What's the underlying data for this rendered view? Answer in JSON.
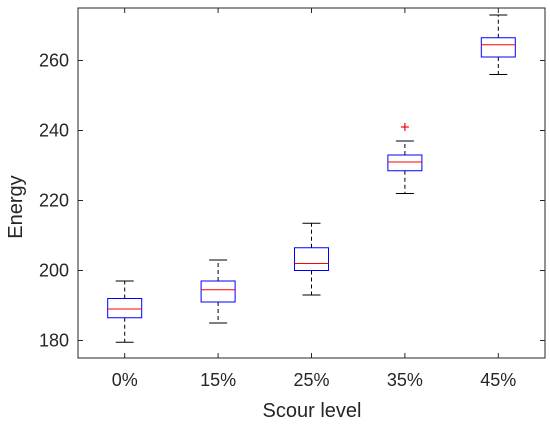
{
  "chart_data": {
    "type": "boxplot",
    "xlabel": "Scour level",
    "ylabel": "Energy",
    "categories": [
      "0%",
      "15%",
      "25%",
      "35%",
      "45%"
    ],
    "ylim": [
      175,
      275
    ],
    "yticks": [
      180,
      200,
      220,
      240,
      260
    ],
    "grid": false,
    "boxes": [
      {
        "category": "0%",
        "whisker_low": 179.5,
        "q1": 186.5,
        "median": 189.0,
        "q3": 192.0,
        "whisker_high": 197.0,
        "outliers": []
      },
      {
        "category": "15%",
        "whisker_low": 185.0,
        "q1": 191.0,
        "median": 194.5,
        "q3": 197.0,
        "whisker_high": 203.0,
        "outliers": []
      },
      {
        "category": "25%",
        "whisker_low": 193.0,
        "q1": 200.0,
        "median": 202.0,
        "q3": 206.5,
        "whisker_high": 213.5,
        "outliers": []
      },
      {
        "category": "35%",
        "whisker_low": 222.0,
        "q1": 228.5,
        "median": 231.0,
        "q3": 233.0,
        "whisker_high": 237.0,
        "outliers": [
          241.0
        ]
      },
      {
        "category": "45%",
        "whisker_low": 256.0,
        "q1": 261.0,
        "median": 264.5,
        "q3": 266.5,
        "whisker_high": 273.0,
        "outliers": []
      }
    ],
    "colors": {
      "box": "#0000ff",
      "median": "#ff0000",
      "whisker": "#000000",
      "outlier": "#ff0000",
      "axis": "#262626"
    }
  }
}
